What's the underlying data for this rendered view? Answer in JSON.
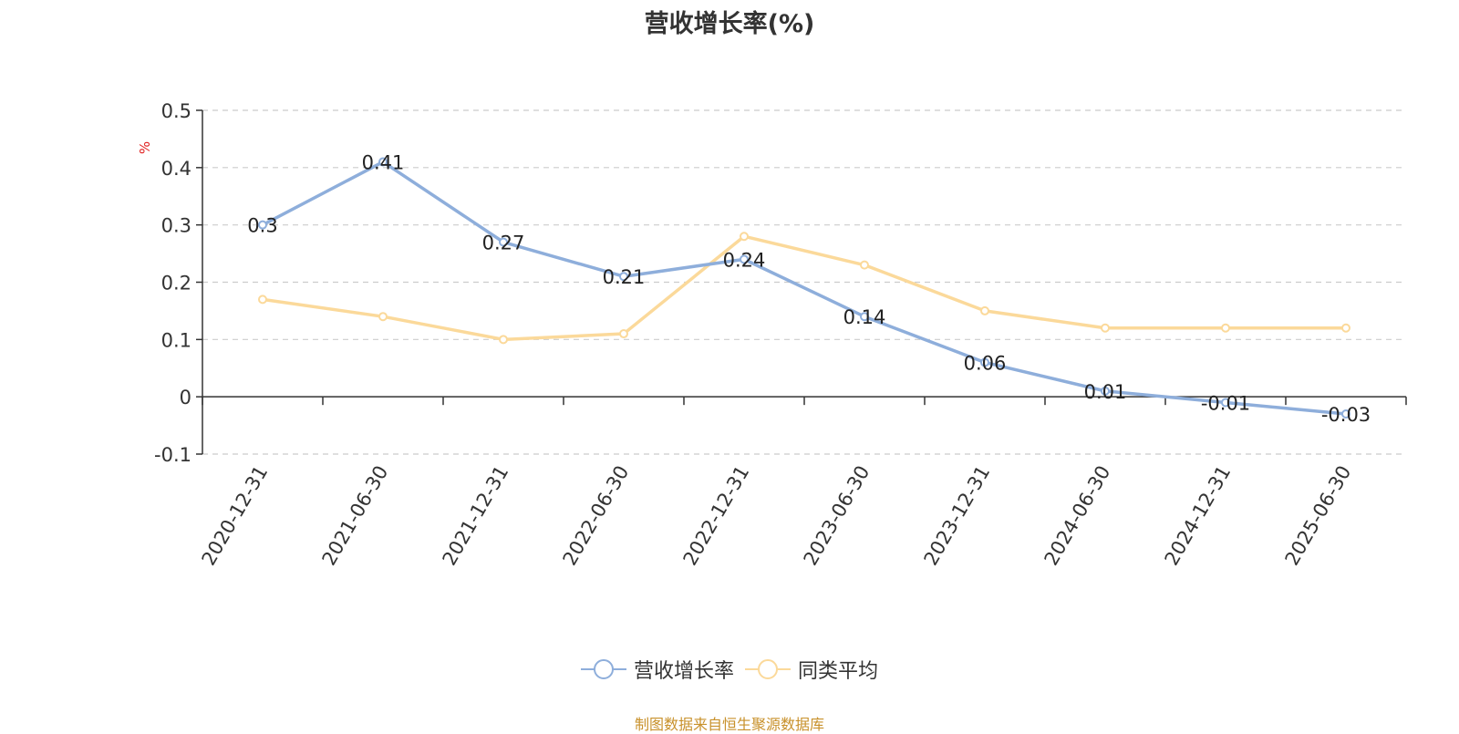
{
  "chart_data": {
    "type": "line",
    "title": "营收增长率(%)",
    "ylabel": "%",
    "ylim": [
      -0.1,
      0.5
    ],
    "yticks": [
      "0.5",
      "0.4",
      "0.3",
      "0.2",
      "0.1",
      "0",
      "-0.1"
    ],
    "ytick_values": [
      0.5,
      0.4,
      0.3,
      0.2,
      0.1,
      0,
      -0.1
    ],
    "categories": [
      "2020-12-31",
      "2021-06-30",
      "2021-12-31",
      "2022-06-30",
      "2022-12-31",
      "2023-06-30",
      "2023-12-31",
      "2024-06-30",
      "2024-12-31",
      "2025-06-30"
    ],
    "grid": true,
    "legend_position": "bottom",
    "series": [
      {
        "name": "营收增长率",
        "color": "#8eaedb",
        "values": [
          0.3,
          0.41,
          0.27,
          0.21,
          0.24,
          0.14,
          0.06,
          0.01,
          -0.01,
          -0.03
        ],
        "labels": [
          "0.3",
          "0.41",
          "0.27",
          "0.21",
          "0.24",
          "0.14",
          "0.06",
          "0.01",
          "-0.01",
          "-0.03"
        ]
      },
      {
        "name": "同类平均",
        "color": "#fbd99a",
        "values": [
          0.17,
          0.14,
          0.1,
          0.11,
          0.28,
          0.23,
          0.15,
          0.12,
          0.12,
          0.12
        ]
      }
    ]
  },
  "source_note": "制图数据来自恒生聚源数据库"
}
